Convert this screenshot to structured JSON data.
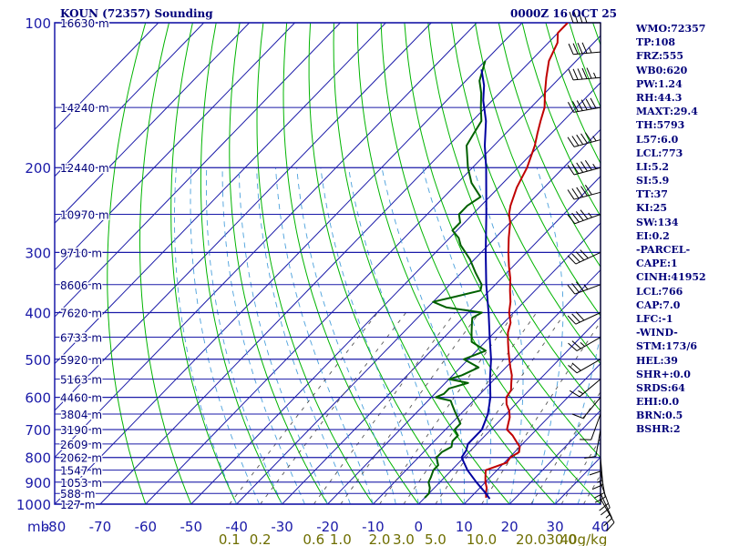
{
  "header": {
    "station": "KOUN (72357) Sounding",
    "time": "0000Z 16 OCT 25"
  },
  "chart_data": {
    "type": "skew-t",
    "title": "KOUN (72357) Sounding",
    "valid_time": "0000Z 16 OCT 25",
    "y_axis_unit": "mb",
    "x_axis_unit": "°C",
    "pressure_levels": [
      100,
      200,
      300,
      400,
      500,
      600,
      700,
      800,
      900,
      1000
    ],
    "temperature_ticks": [
      -80,
      -70,
      -60,
      -50,
      -40,
      -30,
      -20,
      -10,
      0,
      10,
      20,
      30,
      40
    ],
    "temperature_tick_labels": [
      "-80",
      "-70",
      "-60",
      "-50",
      "-40",
      "-30",
      "-20",
      "-10",
      "0",
      "10",
      "20",
      "30",
      "40"
    ],
    "mixing_ratio_labels": [
      "0.1",
      "0.2",
      "0.6",
      "1.0",
      "2.0",
      "3.0",
      "5.0",
      "10.0",
      "20.0",
      "30.0",
      "40g/kg"
    ],
    "mixing_ratio_values": [
      0.1,
      0.2,
      0.6,
      1.0,
      2.0,
      3.0,
      5.0,
      10.0,
      20.0,
      30.0,
      40.0
    ],
    "mixing_ratio_unit": "g/kg",
    "height_labels": [
      {
        "p": 100,
        "label": "16630 m"
      },
      {
        "p": 150,
        "label": "14240 m"
      },
      {
        "p": 200,
        "label": "12440 m"
      },
      {
        "p": 250,
        "label": "10970 m"
      },
      {
        "p": 300,
        "label": "9710 m"
      },
      {
        "p": 350,
        "label": "8606 m"
      },
      {
        "p": 400,
        "label": "7620 m"
      },
      {
        "p": 450,
        "label": "6733 m"
      },
      {
        "p": 500,
        "label": "5920 m"
      },
      {
        "p": 550,
        "label": "5163 m"
      },
      {
        "p": 600,
        "label": "4460 m"
      },
      {
        "p": 650,
        "label": "3804 m"
      },
      {
        "p": 700,
        "label": "3190 m"
      },
      {
        "p": 750,
        "label": "2609 m"
      },
      {
        "p": 800,
        "label": "2062 m"
      },
      {
        "p": 850,
        "label": "1547 m"
      },
      {
        "p": 900,
        "label": "1053 m"
      },
      {
        "p": 950,
        "label": "588 m"
      },
      {
        "p": 1000,
        "label": "127 m"
      }
    ],
    "series": [
      {
        "name": "temperature",
        "color": "#c00000",
        "points": [
          [
            970,
            13.5
          ],
          [
            950,
            12.5
          ],
          [
            925,
            11.5
          ],
          [
            900,
            10
          ],
          [
            880,
            9
          ],
          [
            850,
            7.5
          ],
          [
            820,
            10.5
          ],
          [
            800,
            10.2
          ],
          [
            780,
            11
          ],
          [
            760,
            10
          ],
          [
            740,
            8
          ],
          [
            720,
            6
          ],
          [
            700,
            3.5
          ],
          [
            680,
            2.5
          ],
          [
            660,
            1.5
          ],
          [
            640,
            0
          ],
          [
            620,
            -2
          ],
          [
            600,
            -3.5
          ],
          [
            580,
            -4
          ],
          [
            560,
            -5.5
          ],
          [
            540,
            -7
          ],
          [
            520,
            -9
          ],
          [
            500,
            -11
          ],
          [
            480,
            -13
          ],
          [
            460,
            -15
          ],
          [
            440,
            -17
          ],
          [
            420,
            -18.5
          ],
          [
            400,
            -21
          ],
          [
            380,
            -23
          ],
          [
            360,
            -25.5
          ],
          [
            340,
            -28
          ],
          [
            320,
            -31
          ],
          [
            300,
            -34
          ],
          [
            280,
            -37
          ],
          [
            260,
            -40
          ],
          [
            250,
            -42
          ],
          [
            240,
            -43.5
          ],
          [
            220,
            -46
          ],
          [
            200,
            -48
          ],
          [
            180,
            -51
          ],
          [
            170,
            -53
          ],
          [
            160,
            -55
          ],
          [
            150,
            -57
          ],
          [
            140,
            -60
          ],
          [
            130,
            -63
          ],
          [
            120,
            -66
          ],
          [
            110,
            -68
          ],
          [
            105,
            -70
          ],
          [
            100,
            -70
          ]
        ]
      },
      {
        "name": "dewpoint",
        "color": "#006000",
        "points": [
          [
            970,
            0
          ],
          [
            950,
            0
          ],
          [
            925,
            -1
          ],
          [
            900,
            -2.5
          ],
          [
            880,
            -3
          ],
          [
            850,
            -4
          ],
          [
            830,
            -4
          ],
          [
            800,
            -6
          ],
          [
            780,
            -6
          ],
          [
            760,
            -5
          ],
          [
            740,
            -6
          ],
          [
            720,
            -6
          ],
          [
            700,
            -8
          ],
          [
            680,
            -8
          ],
          [
            660,
            -10
          ],
          [
            640,
            -12
          ],
          [
            620,
            -14
          ],
          [
            610,
            -15
          ],
          [
            600,
            -19
          ],
          [
            590,
            -18
          ],
          [
            575,
            -18
          ],
          [
            560,
            -15
          ],
          [
            550,
            -20
          ],
          [
            540,
            -18
          ],
          [
            520,
            -16
          ],
          [
            500,
            -21
          ],
          [
            480,
            -18
          ],
          [
            460,
            -23
          ],
          [
            440,
            -25
          ],
          [
            420,
            -27
          ],
          [
            410,
            -28
          ],
          [
            400,
            -27
          ],
          [
            390,
            -36
          ],
          [
            380,
            -40
          ],
          [
            370,
            -36
          ],
          [
            360,
            -32
          ],
          [
            350,
            -33
          ],
          [
            330,
            -37
          ],
          [
            310,
            -41
          ],
          [
            290,
            -46
          ],
          [
            280,
            -48
          ],
          [
            270,
            -51
          ],
          [
            260,
            -51
          ],
          [
            250,
            -53
          ],
          [
            240,
            -53
          ],
          [
            230,
            -52
          ],
          [
            215,
            -57
          ],
          [
            200,
            -61
          ],
          [
            180,
            -66
          ],
          [
            170,
            -67
          ],
          [
            160,
            -68
          ],
          [
            150,
            -71
          ],
          [
            140,
            -74
          ],
          [
            132,
            -77
          ],
          [
            120,
            -80
          ]
        ]
      },
      {
        "name": "parcel",
        "color": "#0000a0",
        "points": [
          [
            975,
            14.5
          ],
          [
            950,
            12.5
          ],
          [
            900,
            8
          ],
          [
            850,
            3.5
          ],
          [
            800,
            -0.5
          ],
          [
            773,
            -1
          ],
          [
            750,
            -2
          ],
          [
            700,
            -2
          ],
          [
            650,
            -4
          ],
          [
            600,
            -7
          ],
          [
            550,
            -11
          ],
          [
            500,
            -15
          ],
          [
            450,
            -20
          ],
          [
            400,
            -25.5
          ],
          [
            350,
            -32
          ],
          [
            300,
            -39
          ],
          [
            250,
            -47
          ],
          [
            200,
            -57
          ],
          [
            180,
            -62
          ],
          [
            160,
            -67
          ],
          [
            145,
            -72
          ],
          [
            135,
            -75
          ],
          [
            125,
            -79
          ]
        ]
      }
    ],
    "wind_barbs": [
      {
        "p": 100,
        "dir": 270,
        "spd": 35
      },
      {
        "p": 115,
        "dir": 265,
        "spd": 45
      },
      {
        "p": 130,
        "dir": 265,
        "spd": 55
      },
      {
        "p": 150,
        "dir": 260,
        "spd": 60
      },
      {
        "p": 175,
        "dir": 255,
        "spd": 55
      },
      {
        "p": 200,
        "dir": 255,
        "spd": 55
      },
      {
        "p": 225,
        "dir": 255,
        "spd": 50
      },
      {
        "p": 250,
        "dir": 250,
        "spd": 45
      },
      {
        "p": 300,
        "dir": 245,
        "spd": 40
      },
      {
        "p": 350,
        "dir": 250,
        "spd": 35
      },
      {
        "p": 400,
        "dir": 245,
        "spd": 30
      },
      {
        "p": 450,
        "dir": 240,
        "spd": 25
      },
      {
        "p": 500,
        "dir": 240,
        "spd": 20
      },
      {
        "p": 550,
        "dir": 230,
        "spd": 15
      },
      {
        "p": 600,
        "dir": 220,
        "spd": 10
      },
      {
        "p": 650,
        "dir": 200,
        "spd": 10
      },
      {
        "p": 700,
        "dir": 190,
        "spd": 10
      },
      {
        "p": 750,
        "dir": 180,
        "spd": 10
      },
      {
        "p": 800,
        "dir": 175,
        "spd": 15
      },
      {
        "p": 850,
        "dir": 170,
        "spd": 20
      },
      {
        "p": 900,
        "dir": 160,
        "spd": 20
      },
      {
        "p": 950,
        "dir": 155,
        "spd": 15
      },
      {
        "p": 975,
        "dir": 150,
        "spd": 10
      }
    ],
    "colors": {
      "grid": "#1a1aa8",
      "temp_lines": "#1a1aa8",
      "dry_adiabats": "#00b400",
      "moist_adiabats": "#4aa0dc",
      "mixing_ratio": "#555555",
      "text": "#00007a",
      "mixing_label": "#6e6e00"
    }
  },
  "indices": [
    "WMO:72357",
    "TP:108",
    "FRZ:555",
    "WB0:620",
    "PW:1.24",
    "RH:44.3",
    "MAXT:29.4",
    "TH:5793",
    "L57:6.0",
    "LCL:773",
    "LI:5.2",
    "SI:5.9",
    "TT:37",
    "KI:25",
    "SW:134",
    "EI:0.2",
    "-PARCEL-",
    "CAPE:1",
    "CINH:41952",
    "LCL:766",
    "CAP:7.0",
    "LFC:-1",
    "-WIND-",
    "STM:173/6",
    "HEL:39",
    "SHR+:0.0",
    "SRDS:64",
    "EHI:0.0",
    "BRN:0.5",
    "BSHR:2"
  ]
}
